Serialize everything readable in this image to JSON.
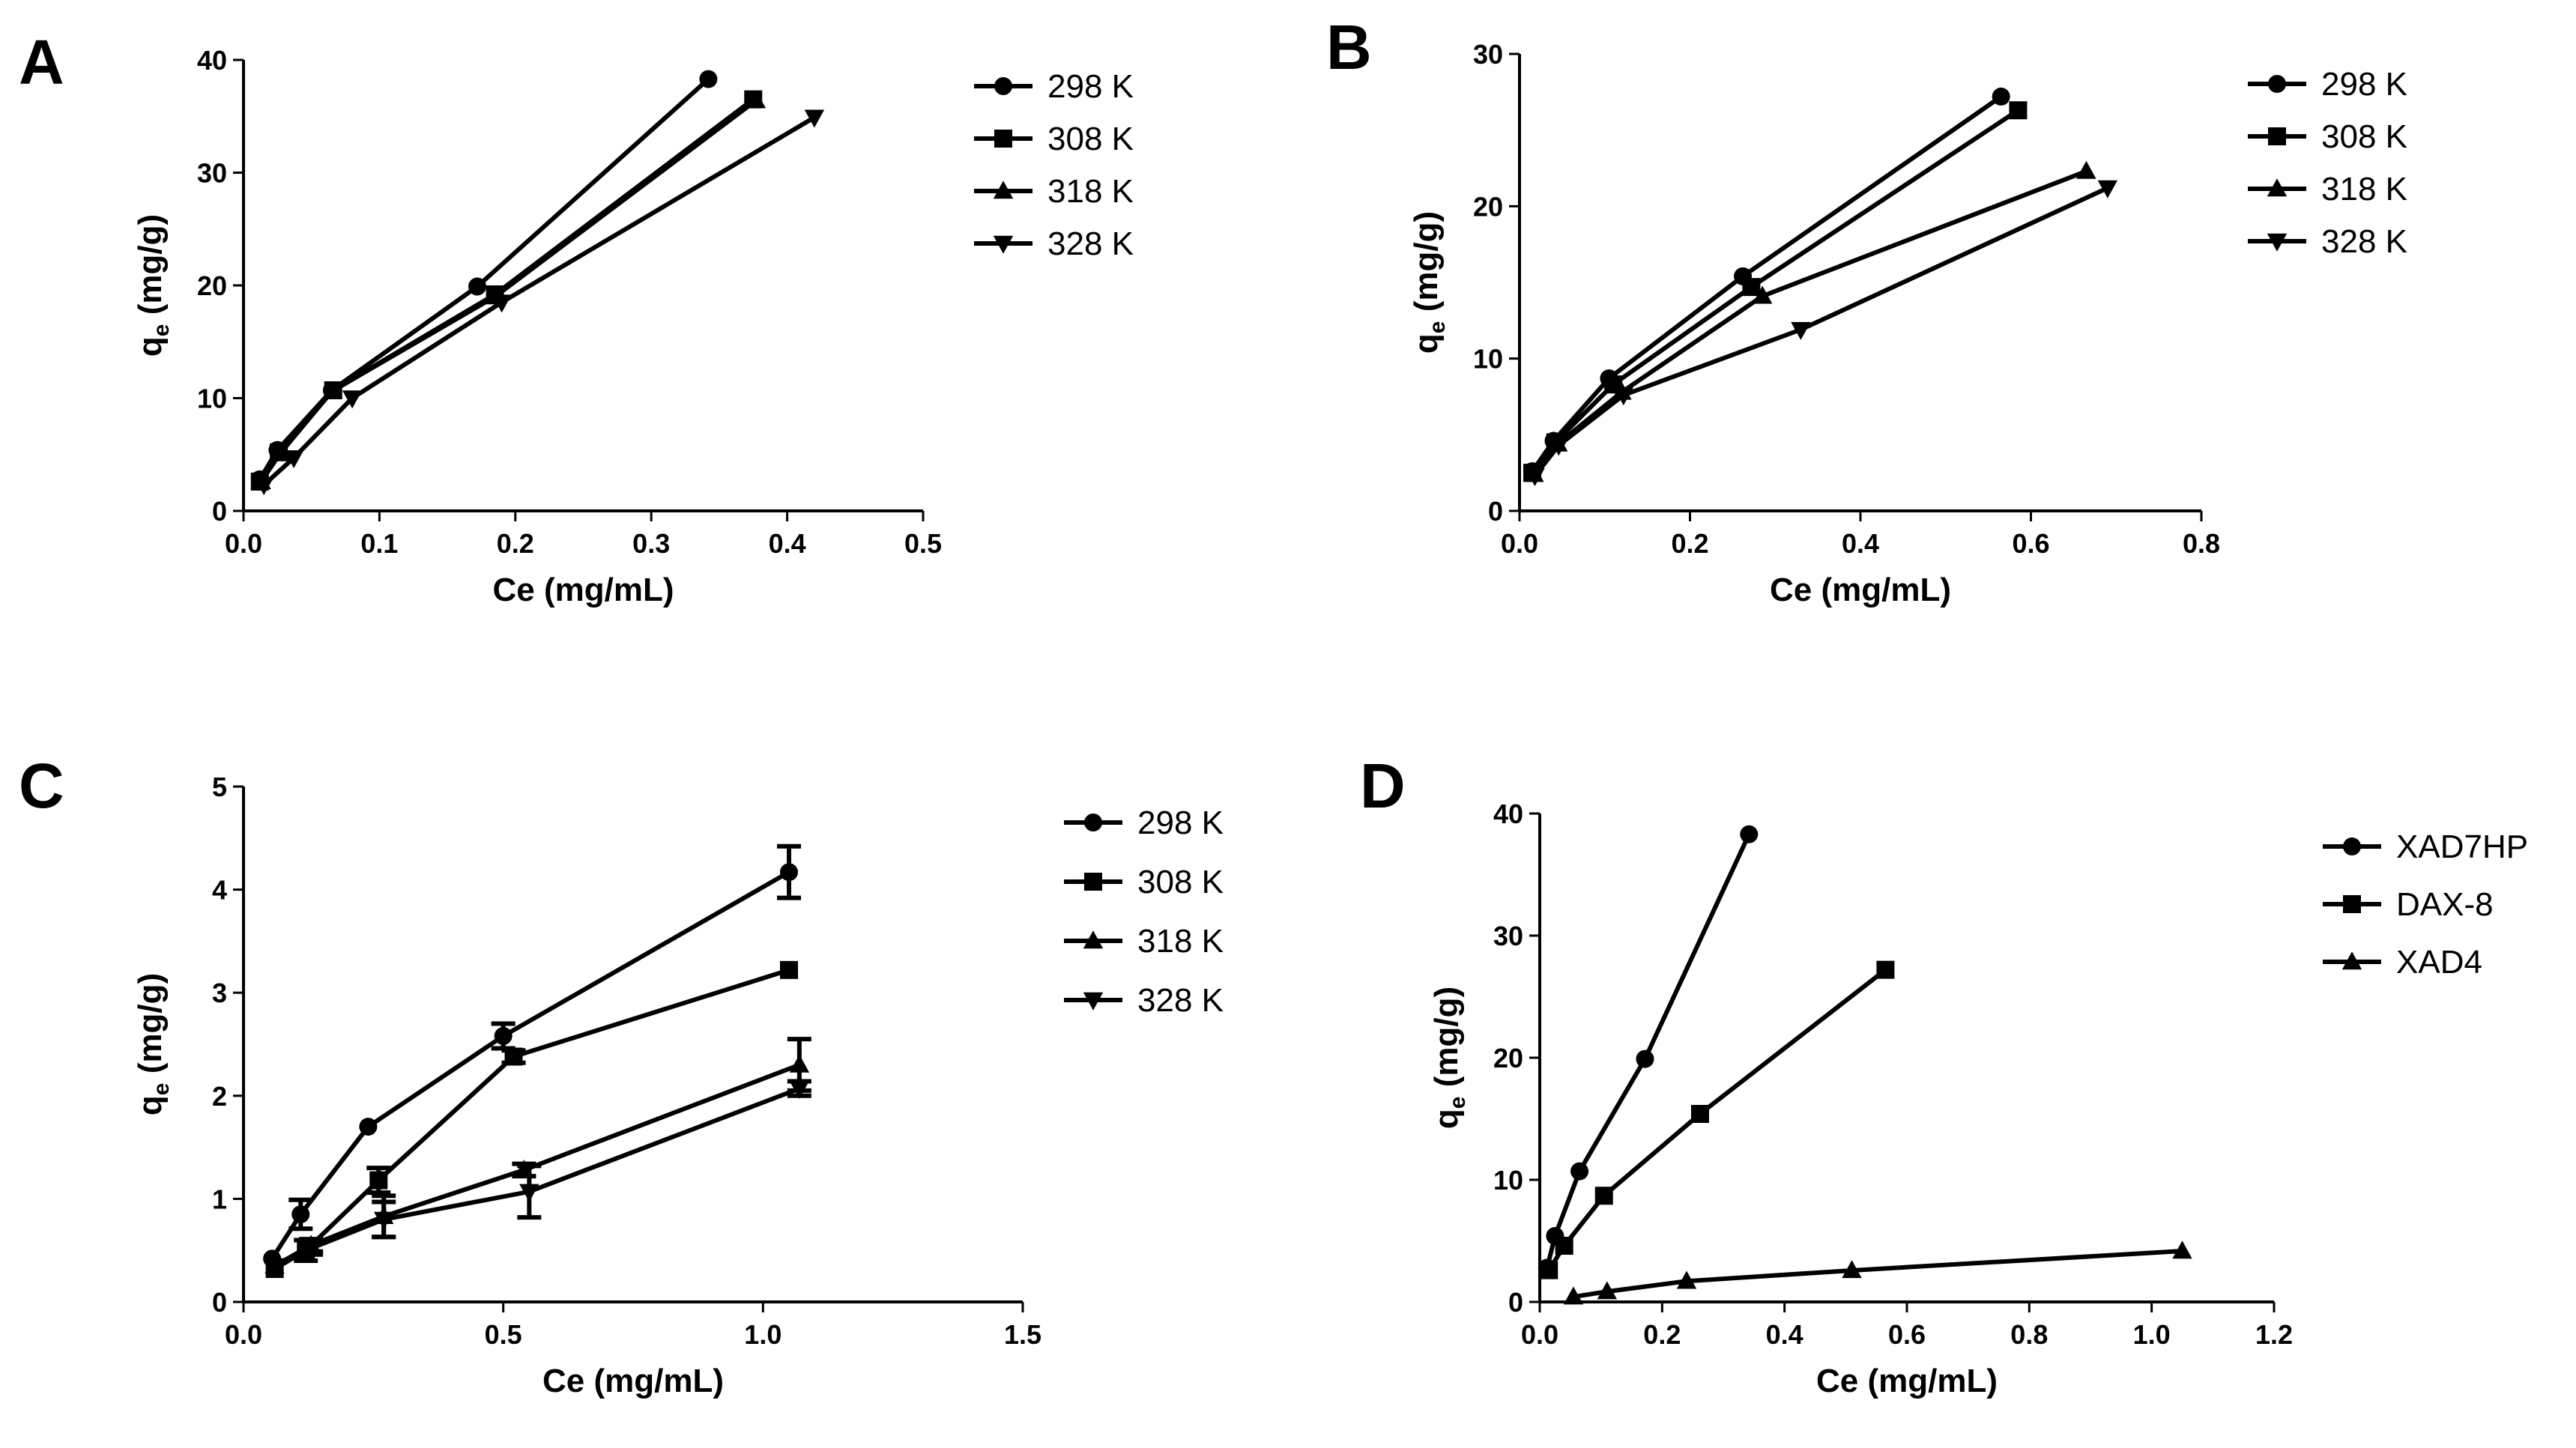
{
  "chart_data": [
    {
      "panel": "A",
      "type": "line",
      "xlabel": "Ce (mg/mL)",
      "ylabel_main": "q",
      "ylabel_sub": "e",
      "ylabel_rest": " (mg/g)",
      "xlim": [
        0,
        0.5
      ],
      "ylim": [
        0,
        40
      ],
      "xticks": [
        0.0,
        0.1,
        0.2,
        0.3,
        0.4,
        0.5
      ],
      "xtick_labels": [
        "0.0",
        "0.1",
        "0.2",
        "0.3",
        "0.4",
        "0.5"
      ],
      "yticks": [
        0,
        10,
        20,
        30,
        40
      ],
      "ytick_labels": [
        "0",
        "10",
        "20",
        "30",
        "40"
      ],
      "legend_position": "right",
      "series": [
        {
          "name": "298 K",
          "marker": "circle",
          "x": [
            0.012,
            0.025,
            0.065,
            0.172,
            0.342
          ],
          "y": [
            2.8,
            5.4,
            10.7,
            19.9,
            38.3
          ]
        },
        {
          "name": "308 K",
          "marker": "square",
          "x": [
            0.012,
            0.026,
            0.066,
            0.185,
            0.375
          ],
          "y": [
            2.6,
            5.2,
            10.7,
            19.2,
            36.5
          ]
        },
        {
          "name": "318 K",
          "marker": "triangle-up",
          "x": [
            0.013,
            0.027,
            0.065,
            0.185,
            0.377
          ],
          "y": [
            2.6,
            5.1,
            10.6,
            19.0,
            36.4
          ]
        },
        {
          "name": "328 K",
          "marker": "triangle-down",
          "x": [
            0.015,
            0.037,
            0.08,
            0.19,
            0.42
          ],
          "y": [
            2.3,
            4.7,
            10.0,
            18.5,
            34.9
          ]
        }
      ]
    },
    {
      "panel": "B",
      "type": "line",
      "xlabel": "Ce (mg/mL)",
      "ylabel_main": "q",
      "ylabel_sub": "e",
      "ylabel_rest": " (mg/g)",
      "xlim": [
        0,
        0.8
      ],
      "ylim": [
        0,
        30
      ],
      "xticks": [
        0.0,
        0.2,
        0.4,
        0.6,
        0.8
      ],
      "xtick_labels": [
        "0.0",
        "0.2",
        "0.4",
        "0.6",
        "0.8"
      ],
      "yticks": [
        0,
        10,
        20,
        30
      ],
      "ytick_labels": [
        "0",
        "10",
        "20",
        "30"
      ],
      "legend_position": "right",
      "series": [
        {
          "name": "298 K",
          "marker": "circle",
          "x": [
            0.015,
            0.04,
            0.105,
            0.262,
            0.565
          ],
          "y": [
            2.6,
            4.6,
            8.7,
            15.4,
            27.2
          ]
        },
        {
          "name": "308 K",
          "marker": "square",
          "x": [
            0.015,
            0.042,
            0.11,
            0.272,
            0.585
          ],
          "y": [
            2.5,
            4.5,
            8.3,
            14.7,
            26.3
          ]
        },
        {
          "name": "318 K",
          "marker": "triangle-up",
          "x": [
            0.017,
            0.045,
            0.12,
            0.285,
            0.665
          ],
          "y": [
            2.4,
            4.4,
            7.8,
            14.1,
            22.3
          ]
        },
        {
          "name": "328 K",
          "marker": "triangle-down",
          "x": [
            0.018,
            0.046,
            0.122,
            0.33,
            0.69
          ],
          "y": [
            2.3,
            4.3,
            7.6,
            11.9,
            21.2
          ]
        }
      ]
    },
    {
      "panel": "C",
      "type": "line",
      "xlabel": "Ce (mg/mL)",
      "ylabel_main": "q",
      "ylabel_sub": "e",
      "ylabel_rest": " (mg/g)",
      "xlim": [
        0,
        1.5
      ],
      "ylim": [
        0,
        5
      ],
      "xticks": [
        0.0,
        0.5,
        1.0,
        1.5
      ],
      "xtick_labels": [
        "0.0",
        "0.5",
        "1.0",
        "1.5"
      ],
      "yticks": [
        0,
        1,
        2,
        3,
        4,
        5
      ],
      "ytick_labels": [
        "0",
        "1",
        "2",
        "3",
        "4",
        "5"
      ],
      "legend_position": "right",
      "series": [
        {
          "name": "298 K",
          "marker": "circle",
          "x": [
            0.055,
            0.11,
            0.24,
            0.5,
            1.05
          ],
          "y": [
            0.42,
            0.85,
            1.7,
            2.58,
            4.17
          ],
          "err": [
            0,
            0.14,
            0,
            0.12,
            0.25
          ]
        },
        {
          "name": "308 K",
          "marker": "square",
          "x": [
            0.06,
            0.12,
            0.26,
            0.52,
            1.05
          ],
          "y": [
            0.32,
            0.5,
            1.18,
            2.38,
            3.22
          ],
          "err": [
            0,
            0.1,
            0.12,
            0.06,
            0
          ]
        },
        {
          "name": "318 K",
          "marker": "triangle-up",
          "x": [
            0.06,
            0.13,
            0.27,
            0.54,
            1.07
          ],
          "y": [
            0.35,
            0.55,
            0.83,
            1.28,
            2.3
          ],
          "err": [
            0,
            0.06,
            0.2,
            0.06,
            0.25
          ]
        },
        {
          "name": "328 K",
          "marker": "triangle-down",
          "x": [
            0.06,
            0.13,
            0.27,
            0.55,
            1.07
          ],
          "y": [
            0.35,
            0.52,
            0.8,
            1.07,
            2.07
          ],
          "err": [
            0,
            0.06,
            0.17,
            0.25,
            0.07
          ]
        }
      ]
    },
    {
      "panel": "D",
      "type": "line",
      "xlabel": "Ce (mg/mL)",
      "ylabel_main": "q",
      "ylabel_sub": "e",
      "ylabel_rest": " (mg/g)",
      "xlim": [
        0,
        1.2
      ],
      "ylim": [
        0,
        40
      ],
      "xticks": [
        0.0,
        0.2,
        0.4,
        0.6,
        0.8,
        1.0,
        1.2
      ],
      "xtick_labels": [
        "0.0",
        "0.2",
        "0.4",
        "0.6",
        "0.8",
        "1.0",
        "1.2"
      ],
      "yticks": [
        0,
        10,
        20,
        30,
        40
      ],
      "ytick_labels": [
        "0",
        "10",
        "20",
        "30",
        "40"
      ],
      "legend_position": "right",
      "series": [
        {
          "name": "XAD7HP",
          "marker": "circle",
          "x": [
            0.012,
            0.025,
            0.065,
            0.172,
            0.342
          ],
          "y": [
            2.8,
            5.4,
            10.7,
            19.9,
            38.3
          ]
        },
        {
          "name": "DAX-8",
          "marker": "square",
          "x": [
            0.015,
            0.04,
            0.105,
            0.262,
            0.565
          ],
          "y": [
            2.6,
            4.6,
            8.7,
            15.4,
            27.2
          ]
        },
        {
          "name": "XAD4",
          "marker": "triangle-up",
          "x": [
            0.055,
            0.11,
            0.24,
            0.51,
            1.05
          ],
          "y": [
            0.42,
            0.85,
            1.7,
            2.58,
            4.17
          ]
        }
      ]
    }
  ]
}
